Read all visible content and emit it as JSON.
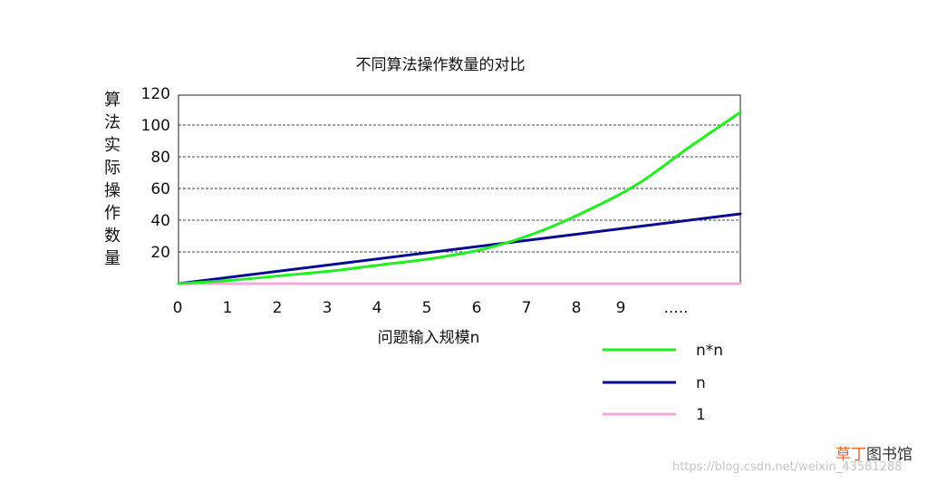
{
  "chart_data": {
    "type": "line",
    "title": "不同算法操作数量的对比",
    "ylabel": "算法实际操作数量",
    "xlabel": "问题输入规模n",
    "x_tick_labels": [
      "0",
      "1",
      "2",
      "3",
      "4",
      "5",
      "6",
      "7",
      "8",
      "9",
      "....."
    ],
    "y_tick_labels": [
      "20",
      "40",
      "60",
      "80",
      "100",
      "120"
    ],
    "ylim": [
      0,
      120
    ],
    "xlim": [
      0,
      11
    ],
    "grid": "horizontal dashed",
    "legend_position": "bottom-right",
    "series": [
      {
        "name": "n*n",
        "color": "#22ee22",
        "x": [
          0,
          1,
          2,
          3,
          4,
          5,
          6,
          7,
          8,
          9,
          10,
          11
        ],
        "y": [
          0,
          2,
          5,
          8,
          12,
          16,
          22,
          32,
          46,
          63,
          86,
          108
        ]
      },
      {
        "name": "n",
        "color": "#0a0a8c",
        "x": [
          0,
          11
        ],
        "y": [
          0,
          44
        ]
      },
      {
        "name": "1",
        "color": "#f4a8d4",
        "x": [
          0,
          11
        ],
        "y": [
          0,
          0
        ]
      }
    ]
  },
  "watermark": {
    "brand_accent": "草丁",
    "brand_rest": "图书馆",
    "url": "https://blog.csdn.net/weixin_43581288"
  }
}
